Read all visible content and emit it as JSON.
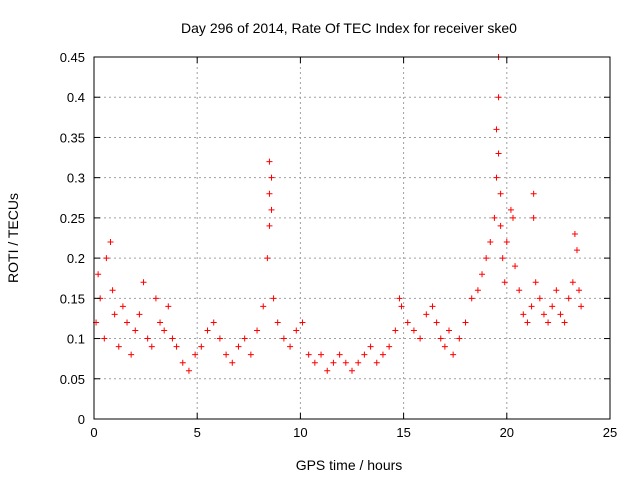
{
  "chart_data": {
    "type": "scatter",
    "title": "Day 296 of 2014, Rate Of TEC Index for receiver ske0",
    "xlabel": "GPS time / hours",
    "ylabel": "ROTI / TECUs",
    "xlim": [
      0,
      25
    ],
    "ylim": [
      0,
      0.45
    ],
    "x_ticks": [
      0,
      5,
      10,
      15,
      20,
      25
    ],
    "x_tick_labels": [
      "0",
      "5",
      "10",
      "15",
      "20",
      "25"
    ],
    "y_ticks": [
      0,
      0.05,
      0.1,
      0.15,
      0.2,
      0.25,
      0.3,
      0.35,
      0.4,
      0.45
    ],
    "y_tick_labels": [
      "0",
      "0.05",
      "0.1",
      "0.15",
      "0.2",
      "0.25",
      "0.3",
      "0.35",
      "0.4",
      "0.45"
    ],
    "grid": true,
    "marker": "+",
    "point_color": "#ff0000",
    "series": [
      {
        "name": "ROTI",
        "x": [
          0.1,
          0.2,
          0.3,
          0.5,
          0.6,
          0.8,
          0.9,
          1.0,
          1.2,
          1.4,
          1.6,
          1.8,
          2.0,
          2.2,
          2.4,
          2.6,
          2.8,
          3.0,
          3.2,
          3.4,
          3.6,
          3.8,
          4.0,
          4.3,
          4.6,
          4.9,
          5.2,
          5.5,
          5.8,
          6.1,
          6.4,
          6.7,
          7.0,
          7.3,
          7.6,
          7.9,
          8.2,
          8.4,
          8.5,
          8.5,
          8.5,
          8.6,
          8.6,
          8.7,
          8.9,
          9.2,
          9.5,
          9.8,
          10.1,
          10.4,
          10.7,
          11.0,
          11.3,
          11.6,
          11.9,
          12.2,
          12.5,
          12.8,
          13.1,
          13.4,
          13.7,
          14.0,
          14.3,
          14.6,
          14.8,
          14.9,
          15.2,
          15.5,
          15.8,
          16.1,
          16.4,
          16.6,
          16.8,
          17.0,
          17.2,
          17.4,
          17.7,
          18.0,
          18.3,
          18.6,
          18.8,
          19.0,
          19.2,
          19.4,
          19.5,
          19.5,
          19.6,
          19.6,
          19.6,
          19.7,
          19.7,
          19.8,
          19.9,
          20.0,
          20.2,
          20.3,
          20.4,
          20.6,
          20.8,
          21.0,
          21.2,
          21.3,
          21.3,
          21.4,
          21.6,
          21.8,
          22.0,
          22.2,
          22.4,
          22.6,
          22.8,
          23.0,
          23.2,
          23.3,
          23.4,
          23.5,
          23.6
        ],
        "y": [
          0.12,
          0.18,
          0.15,
          0.1,
          0.2,
          0.22,
          0.16,
          0.13,
          0.09,
          0.14,
          0.12,
          0.08,
          0.11,
          0.13,
          0.17,
          0.1,
          0.09,
          0.15,
          0.12,
          0.11,
          0.14,
          0.1,
          0.09,
          0.07,
          0.06,
          0.08,
          0.09,
          0.11,
          0.12,
          0.1,
          0.08,
          0.07,
          0.09,
          0.1,
          0.08,
          0.11,
          0.14,
          0.2,
          0.24,
          0.28,
          0.32,
          0.3,
          0.26,
          0.15,
          0.12,
          0.1,
          0.09,
          0.11,
          0.12,
          0.08,
          0.07,
          0.08,
          0.06,
          0.07,
          0.08,
          0.07,
          0.06,
          0.07,
          0.08,
          0.09,
          0.07,
          0.08,
          0.09,
          0.11,
          0.15,
          0.14,
          0.12,
          0.11,
          0.1,
          0.13,
          0.14,
          0.12,
          0.1,
          0.09,
          0.11,
          0.08,
          0.1,
          0.12,
          0.15,
          0.16,
          0.18,
          0.2,
          0.22,
          0.25,
          0.3,
          0.36,
          0.45,
          0.4,
          0.33,
          0.28,
          0.24,
          0.2,
          0.17,
          0.22,
          0.26,
          0.25,
          0.19,
          0.16,
          0.13,
          0.12,
          0.14,
          0.28,
          0.25,
          0.17,
          0.15,
          0.13,
          0.12,
          0.14,
          0.16,
          0.13,
          0.12,
          0.15,
          0.17,
          0.23,
          0.21,
          0.16,
          0.14
        ]
      }
    ]
  }
}
